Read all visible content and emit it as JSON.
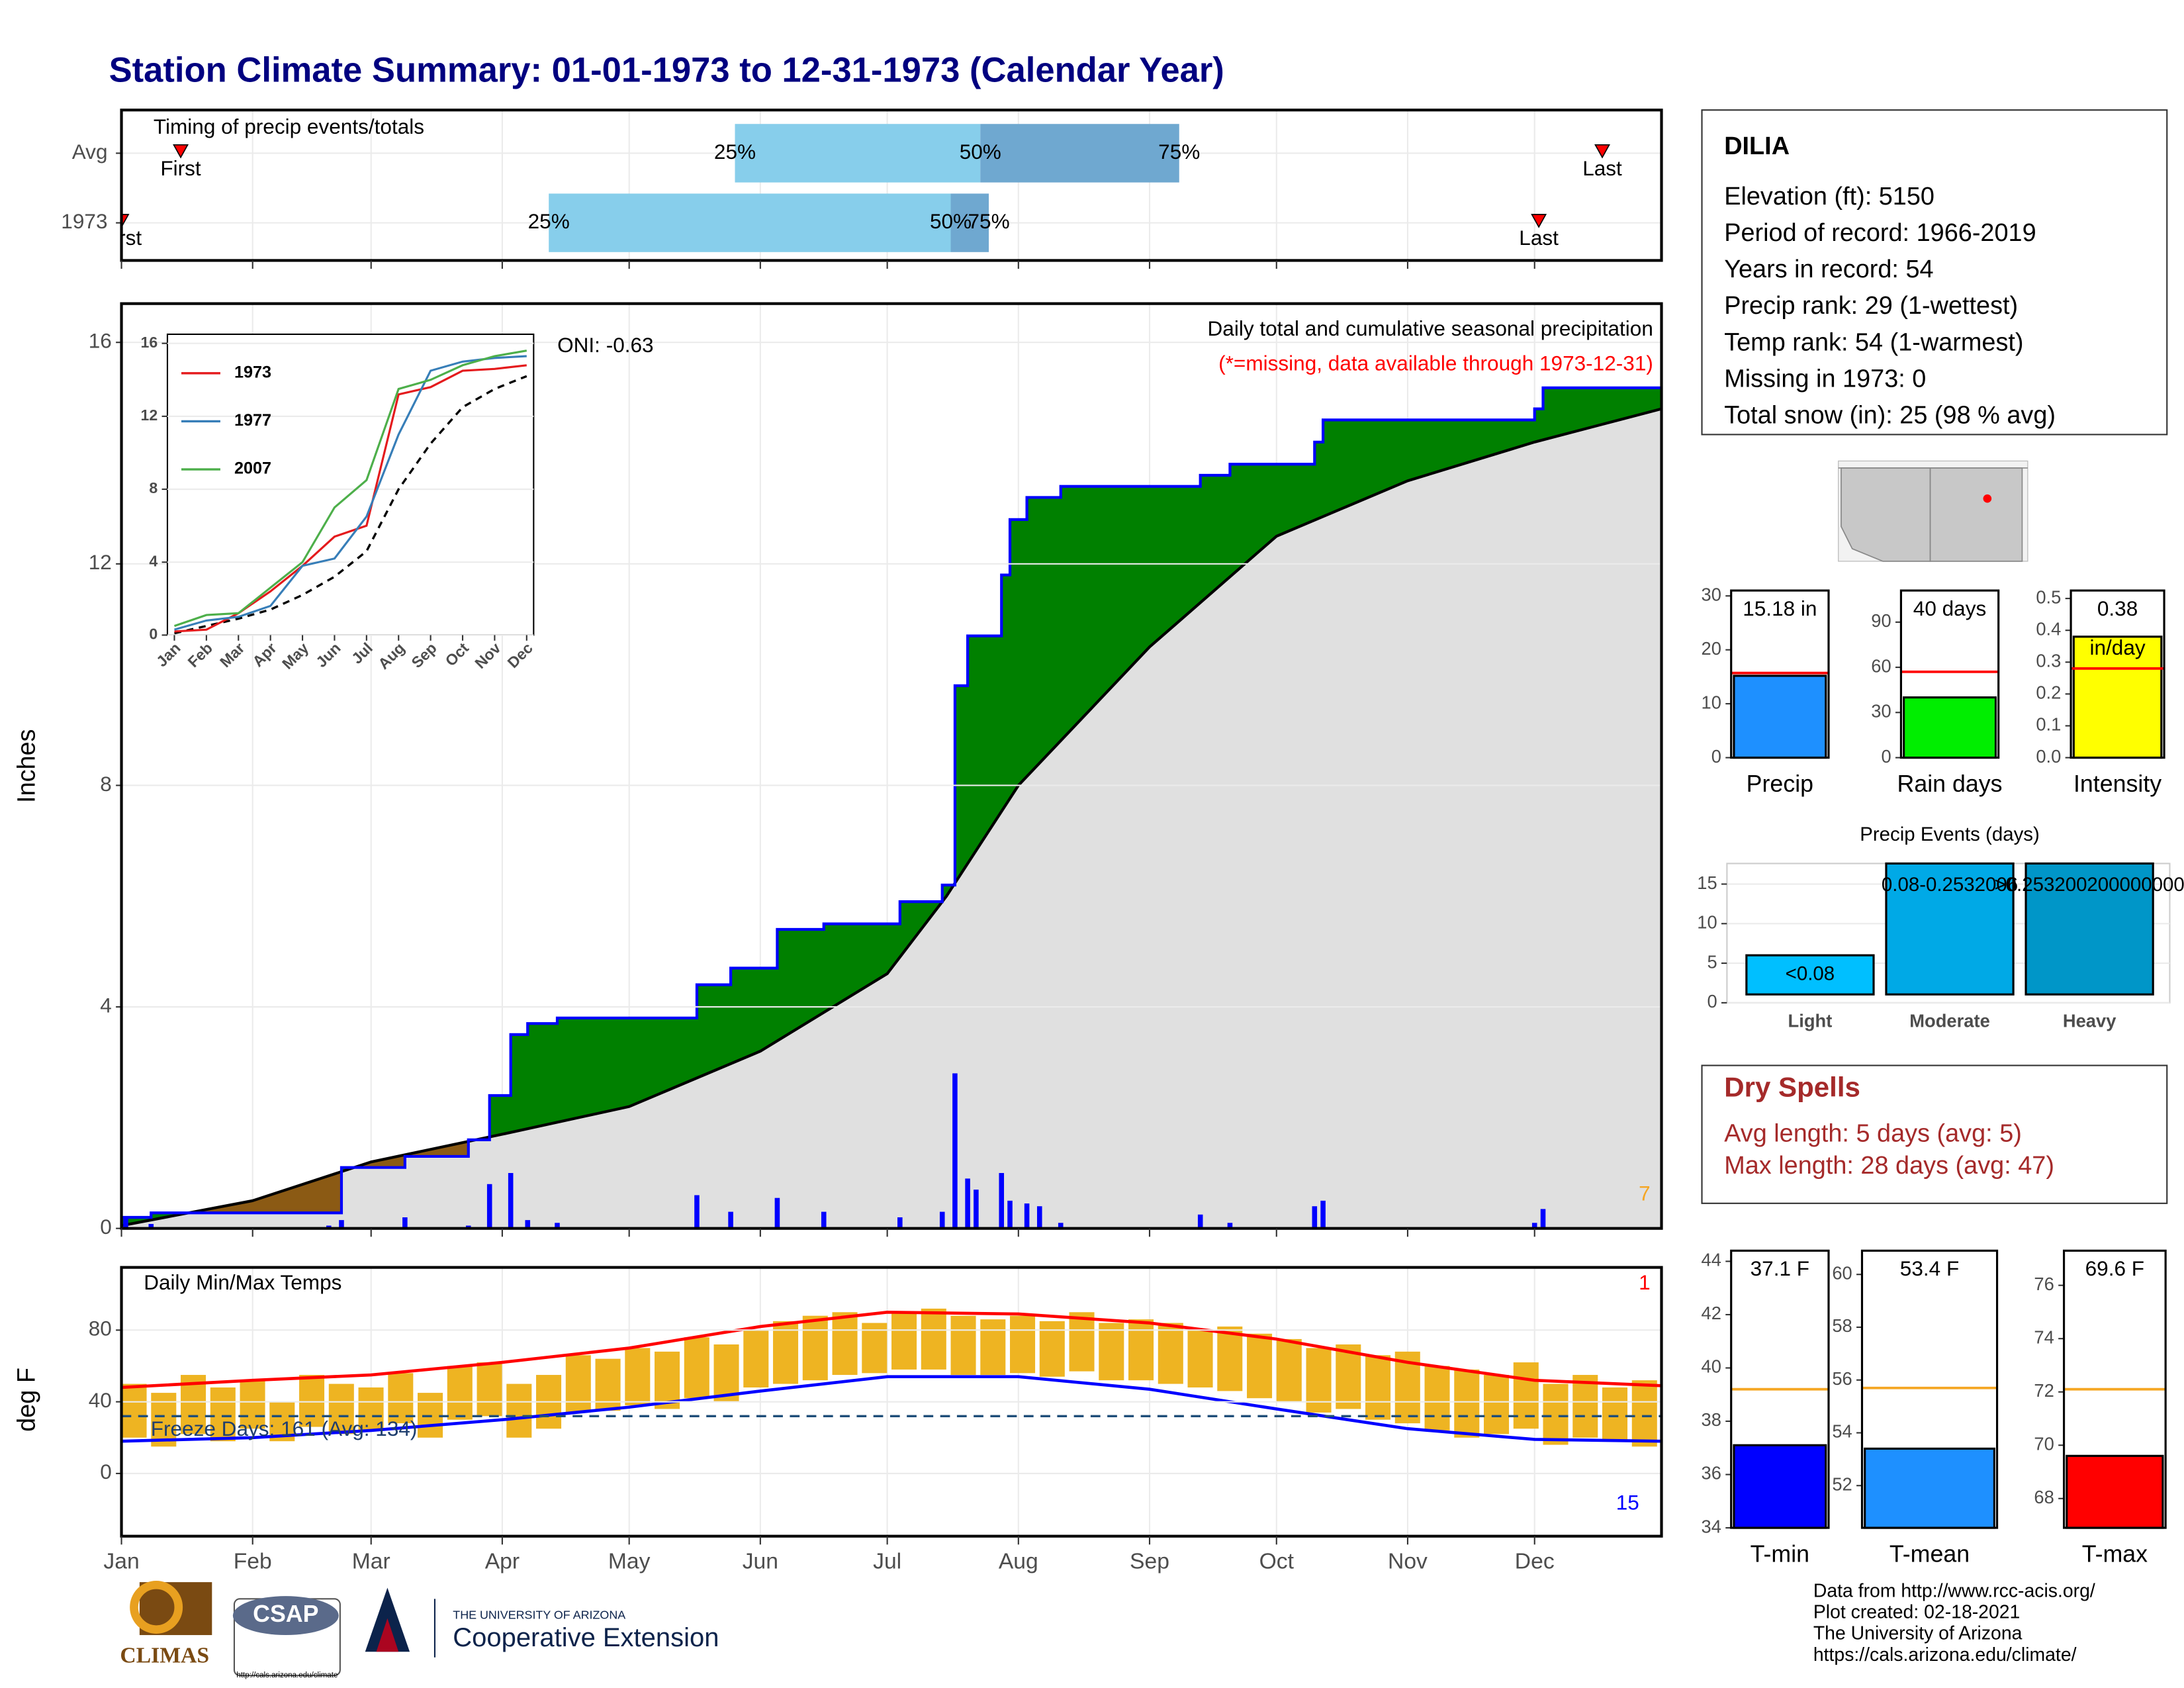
{
  "title": "Station Climate Summary: 01-01-1973 to 12-31-1973 (Calendar Year)",
  "x_axis": {
    "xlim": [
      1,
      365
    ],
    "xticks": [
      {
        "value": 1,
        "label": "Jan"
      },
      {
        "value": 32,
        "label": "Feb"
      },
      {
        "value": 60,
        "label": "Mar"
      },
      {
        "value": 91,
        "label": "Apr"
      },
      {
        "value": 121,
        "label": "May"
      },
      {
        "value": 152,
        "label": "Jun"
      },
      {
        "value": 182,
        "label": "Jul"
      },
      {
        "value": 213,
        "label": "Aug"
      },
      {
        "value": 244,
        "label": "Sep"
      },
      {
        "value": 274,
        "label": "Oct"
      },
      {
        "value": 305,
        "label": "Nov"
      },
      {
        "value": 335,
        "label": "Dec"
      }
    ]
  },
  "chart_data": [
    {
      "type": "timing",
      "title": "Timing of precip events/totals",
      "marker_color": "#ff0000",
      "colors": [
        "#87ceeb",
        "#6fa8d0"
      ],
      "labels": {
        "first": "First",
        "last": "Last",
        "q25": "25%",
        "q50": "50%",
        "q75": "75%"
      },
      "rows": [
        {
          "name": "Avg",
          "first": 15,
          "q25": 146,
          "q50": 204,
          "q75": 251,
          "last": 351
        },
        {
          "name": "1973",
          "first": 1,
          "q25": 102,
          "q50": 197,
          "q75": 206,
          "last": 336
        }
      ]
    },
    {
      "type": "precip",
      "ylabel": "Inches",
      "title": "Daily total and cumulative seasonal precipitation",
      "subtitle": "(*=missing, data available through 1973-12-31)",
      "oni": "ONI: -0.63",
      "corner_label": "7",
      "ylim": [
        0,
        16.7
      ],
      "yticks": [
        0,
        4,
        8,
        12,
        16
      ],
      "grid": true,
      "observed": {
        "color": "#0000ff",
        "fill": "#008000",
        "x": [
          1,
          8,
          8,
          53,
          53,
          68,
          68,
          83,
          83,
          88,
          88,
          93,
          93,
          97,
          97,
          104,
          104,
          137,
          137,
          145,
          145,
          156,
          156,
          167,
          167,
          185,
          185,
          195,
          195,
          198,
          198,
          201,
          201,
          209,
          209,
          211,
          211,
          215,
          215,
          223,
          223,
          256,
          256,
          263,
          263,
          283,
          283,
          285,
          285,
          335,
          335,
          337,
          337,
          365
        ],
        "values": [
          0.2,
          0.2,
          0.28,
          0.28,
          1.1,
          1.1,
          1.3,
          1.3,
          1.6,
          1.6,
          2.4,
          2.4,
          3.5,
          3.5,
          3.7,
          3.7,
          3.8,
          3.8,
          4.4,
          4.4,
          4.7,
          4.7,
          5.4,
          5.4,
          5.5,
          5.5,
          5.9,
          5.9,
          6.2,
          6.2,
          9.8,
          9.8,
          10.7,
          10.7,
          11.8,
          11.8,
          12.8,
          12.8,
          13.2,
          13.2,
          13.4,
          13.4,
          13.6,
          13.6,
          13.8,
          13.8,
          14.2,
          14.2,
          14.6,
          14.6,
          14.8,
          14.8,
          15.18,
          15.18
        ]
      },
      "average": {
        "color": "#000000",
        "fill": "#e0e0e0",
        "deficit_fill": "#8b5a14",
        "x": [
          1,
          32,
          60,
          91,
          121,
          152,
          182,
          196,
          213,
          244,
          274,
          305,
          335,
          365
        ],
        "values": [
          0.05,
          0.5,
          1.2,
          1.7,
          2.2,
          3.2,
          4.6,
          6.0,
          8.0,
          10.5,
          12.5,
          13.5,
          14.2,
          14.8
        ]
      },
      "daily": {
        "color": "#0000ff",
        "x": [
          2,
          8,
          50,
          53,
          68,
          83,
          88,
          93,
          97,
          104,
          137,
          145,
          156,
          167,
          185,
          195,
          198,
          201,
          203,
          209,
          211,
          215,
          218,
          223,
          256,
          263,
          283,
          285,
          335,
          337
        ],
        "values": [
          0.2,
          0.08,
          0.05,
          0.15,
          0.2,
          0.05,
          0.8,
          1.0,
          0.15,
          0.1,
          0.6,
          0.3,
          0.55,
          0.3,
          0.2,
          0.3,
          2.8,
          0.9,
          0.7,
          1.0,
          0.5,
          0.45,
          0.4,
          0.1,
          0.25,
          0.1,
          0.4,
          0.5,
          0.1,
          0.35
        ]
      }
    },
    {
      "type": "line",
      "categories": [
        "Jan",
        "Feb",
        "Mar",
        "Apr",
        "May",
        "Jun",
        "Jul",
        "Aug",
        "Sep",
        "Oct",
        "Nov",
        "Dec"
      ],
      "ylim": [
        0,
        16.5
      ],
      "yticks": [
        0,
        4,
        8,
        12,
        16
      ],
      "series": [
        {
          "name": "1973",
          "color": "#e41a1c",
          "values": [
            0.2,
            0.3,
            1.2,
            2.4,
            3.8,
            5.4,
            6.0,
            13.2,
            13.6,
            14.5,
            14.6,
            14.8
          ]
        },
        {
          "name": "1977",
          "color": "#377eb8",
          "values": [
            0.3,
            0.8,
            1.0,
            1.6,
            3.8,
            4.2,
            6.5,
            11.0,
            14.5,
            15.0,
            15.2,
            15.3
          ]
        },
        {
          "name": "2007",
          "color": "#4daf4a",
          "values": [
            0.5,
            1.1,
            1.2,
            2.6,
            4.0,
            7.0,
            8.5,
            13.5,
            14.0,
            14.8,
            15.3,
            15.6
          ]
        }
      ],
      "average": {
        "color": "#000000",
        "values": [
          0.1,
          0.5,
          0.9,
          1.4,
          2.2,
          3.2,
          4.6,
          8.0,
          10.5,
          12.5,
          13.5,
          14.2
        ]
      }
    },
    {
      "type": "temperature",
      "title": "Daily Min/Max Temps",
      "ylabel": "deg F",
      "freeze_label": "Freeze Days: 161 (Avg: 134)",
      "max_count": "1",
      "min_count": "15",
      "ylim": [
        -35,
        115
      ],
      "yticks": [
        0,
        40,
        80
      ],
      "freeze_line": 32,
      "bar_color": "#eeb422",
      "x": [
        1,
        8,
        15,
        22,
        29,
        36,
        43,
        50,
        57,
        64,
        71,
        78,
        85,
        92,
        99,
        106,
        113,
        120,
        127,
        134,
        141,
        148,
        155,
        162,
        169,
        176,
        183,
        190,
        197,
        204,
        211,
        218,
        225,
        232,
        239,
        246,
        253,
        260,
        267,
        274,
        281,
        288,
        295,
        302,
        309,
        316,
        323,
        330,
        337,
        344,
        351,
        358
      ],
      "tmax": [
        50,
        45,
        55,
        48,
        52,
        40,
        55,
        50,
        48,
        56,
        45,
        60,
        62,
        50,
        55,
        66,
        64,
        70,
        68,
        76,
        72,
        80,
        85,
        88,
        90,
        84,
        90,
        92,
        88,
        86,
        88,
        85,
        90,
        84,
        86,
        84,
        80,
        82,
        78,
        75,
        70,
        72,
        66,
        68,
        60,
        58,
        55,
        62,
        50,
        55,
        48,
        52
      ],
      "tmin": [
        20,
        15,
        22,
        18,
        25,
        18,
        26,
        22,
        24,
        28,
        20,
        30,
        32,
        20,
        25,
        34,
        35,
        38,
        36,
        42,
        40,
        48,
        50,
        52,
        55,
        56,
        58,
        58,
        55,
        55,
        56,
        54,
        57,
        52,
        52,
        50,
        48,
        46,
        42,
        40,
        34,
        36,
        30,
        28,
        24,
        20,
        22,
        25,
        16,
        20,
        18,
        15
      ],
      "normals": {
        "x": [
          1,
          32,
          60,
          91,
          121,
          152,
          182,
          213,
          244,
          274,
          305,
          335,
          365
        ],
        "max": [
          48,
          52,
          55,
          62,
          70,
          82,
          90,
          89,
          84,
          75,
          62,
          52,
          49
        ],
        "max_color": "#ff0000",
        "min": [
          18,
          20,
          24,
          30,
          37,
          46,
          54,
          54,
          47,
          36,
          25,
          19,
          18
        ],
        "min_color": "#0000ff"
      }
    },
    {
      "type": "summary_bar",
      "label": "Precip",
      "value": 15.18,
      "value_label": "15.18 in",
      "average": 15.7,
      "color": "#1e90ff",
      "average_color": "#ff0000",
      "ylim": [
        0,
        31
      ],
      "yticks": [
        0,
        10,
        20,
        30
      ]
    },
    {
      "type": "summary_bar",
      "label": "Rain days",
      "value": 40,
      "value_label": "40 days",
      "average": 57,
      "color": "#00ee00",
      "average_color": "#ff0000",
      "ylim": [
        0,
        111
      ],
      "yticks": [
        0,
        30,
        60,
        90
      ]
    },
    {
      "type": "summary_bar",
      "label": "Intensity",
      "value": 0.38,
      "value_label": "0.38",
      "unit_label": "in/day",
      "average": 0.28,
      "color": "#ffff00",
      "average_color": "#ff0000",
      "ylim": [
        0,
        0.525
      ],
      "yticks": [
        {
          "value": 0,
          "label": "0.0"
        },
        {
          "value": 0.1,
          "label": "0.1"
        },
        {
          "value": 0.2,
          "label": "0.2"
        },
        {
          "value": 0.3,
          "label": "0.3"
        },
        {
          "value": 0.4,
          "label": "0.4"
        },
        {
          "value": 0.5,
          "label": "0.5"
        }
      ]
    },
    {
      "type": "events",
      "title": "Precip Events (days)",
      "categories": [
        "Light",
        "Moderate",
        "Heavy"
      ],
      "values": [
        6,
        17.6,
        17.6
      ],
      "bin_labels": [
        "<0.08",
        "0.08-0.2532006",
        ">0.253200200000000"
      ],
      "colors": [
        "#00bfff",
        "#00a9e6",
        "#0096c8"
      ],
      "ylim": [
        0,
        17.6
      ],
      "yticks": [
        0,
        5,
        10,
        15
      ]
    },
    {
      "type": "summary_bar",
      "label": "T-min",
      "value": 37.1,
      "value_label": "37.1 F",
      "average": 39.2,
      "color": "#0000ff",
      "average_color": "#f5a623",
      "ylim": [
        34,
        44.4
      ],
      "yticks": [
        34,
        36,
        38,
        40,
        42,
        44
      ]
    },
    {
      "type": "summary_bar",
      "label": "T-mean",
      "value": 53.4,
      "value_label": "53.4 F",
      "average": 55.7,
      "color": "#1e90ff",
      "average_color": "#f5a623",
      "ylim": [
        50.4,
        60.9
      ],
      "yticks": [
        52,
        54,
        56,
        58,
        60
      ]
    },
    {
      "type": "summary_bar",
      "label": "T-max",
      "value": 69.6,
      "value_label": "69.6 F",
      "average": 72.1,
      "color": "#ff0000",
      "average_color": "#f5a623",
      "ylim": [
        66.9,
        77.3
      ],
      "yticks": [
        68,
        70,
        72,
        74,
        76
      ]
    }
  ],
  "station": {
    "name": "DILIA",
    "lines": [
      "Elevation (ft): 5150",
      "Period of record: 1966-2019",
      "Years in record: 54",
      "Precip rank: 29 (1-wettest)",
      "Temp rank: 54 (1-warmest)",
      "Missing in 1973: 0",
      "Total snow (in): 25 (98 % avg)"
    ]
  },
  "dry_spells": {
    "title": "Dry Spells",
    "lines": [
      "Avg length: 5 days (avg: 5)",
      "Max length: 28 days (avg: 47)"
    ]
  },
  "footer": {
    "climas": "CLIMAS",
    "csap": "CSAP",
    "csap_url": "http://cals.arizona.edu/climate",
    "university": "THE UNIVERSITY OF ARIZONA",
    "extension": "Cooperative Extension",
    "credits": [
      "Data from http://www.rcc-acis.org/",
      "Plot created: 02-18-2021",
      "The University of Arizona",
      "https://cals.arizona.edu/climate/"
    ]
  }
}
